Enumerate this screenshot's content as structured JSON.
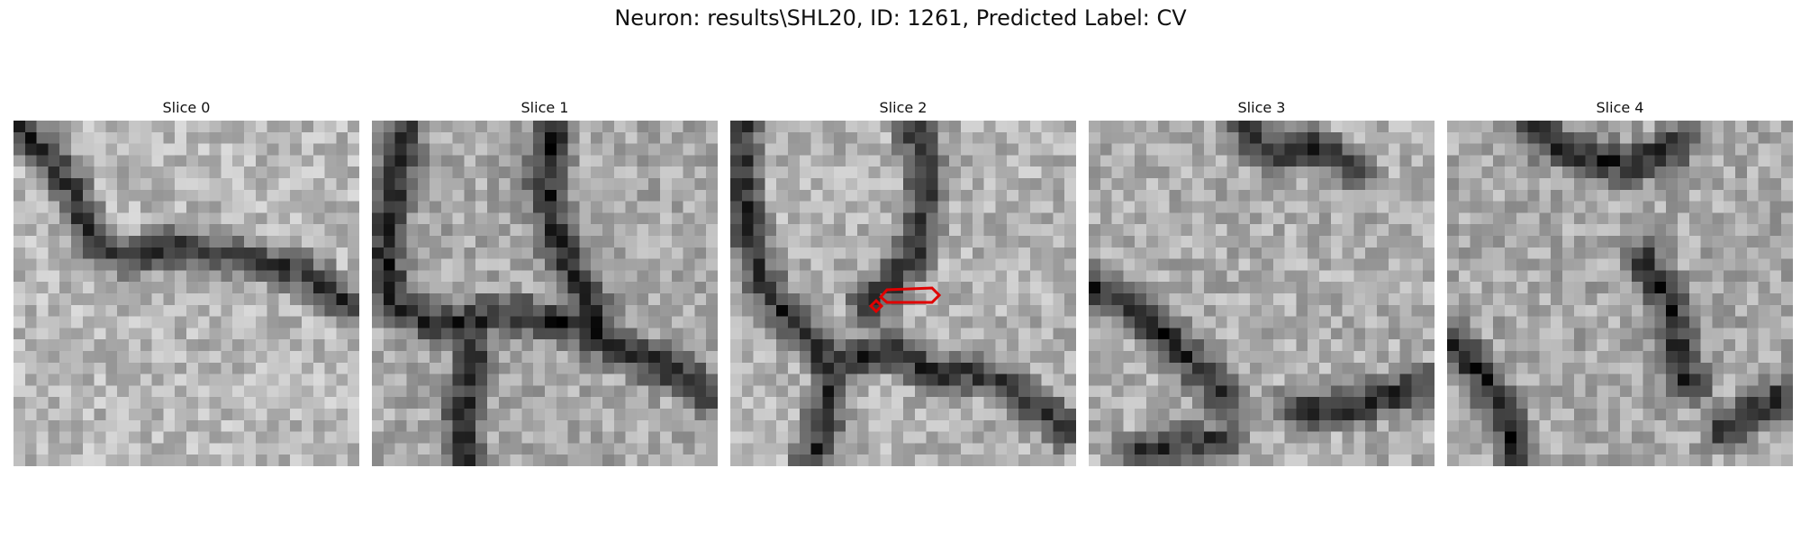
{
  "figure": {
    "title": "Neuron: results\\SHL20, ID: 1261, Predicted Label: CV"
  },
  "slices": [
    {
      "title": "Slice 0"
    },
    {
      "title": "Slice 1"
    },
    {
      "title": "Slice 2"
    },
    {
      "title": "Slice 3"
    },
    {
      "title": "Slice 4"
    }
  ],
  "colors": {
    "contour": "#e00000"
  }
}
